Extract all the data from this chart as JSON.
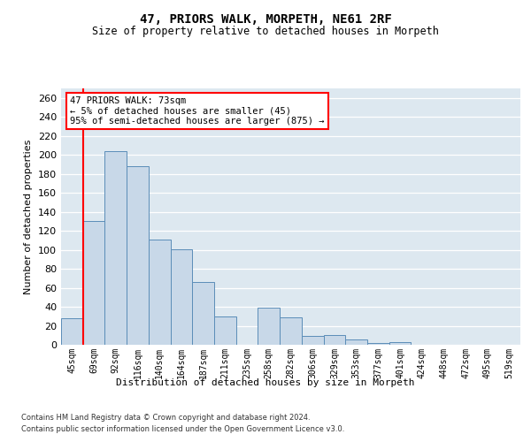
{
  "title": "47, PRIORS WALK, MORPETH, NE61 2RF",
  "subtitle": "Size of property relative to detached houses in Morpeth",
  "xlabel": "Distribution of detached houses by size in Morpeth",
  "ylabel": "Number of detached properties",
  "bar_labels": [
    "45sqm",
    "69sqm",
    "92sqm",
    "116sqm",
    "140sqm",
    "164sqm",
    "187sqm",
    "211sqm",
    "235sqm",
    "258sqm",
    "282sqm",
    "306sqm",
    "329sqm",
    "353sqm",
    "377sqm",
    "401sqm",
    "424sqm",
    "448sqm",
    "472sqm",
    "495sqm",
    "519sqm"
  ],
  "bar_values": [
    28,
    130,
    204,
    188,
    111,
    101,
    66,
    30,
    0,
    39,
    29,
    9,
    10,
    6,
    2,
    3,
    0,
    0,
    0,
    0,
    0
  ],
  "bar_color": "#c8d8e8",
  "bar_edge_color": "#5b8db8",
  "vline_x_idx": 1,
  "vline_color": "red",
  "annotation_line1": "47 PRIORS WALK: 73sqm",
  "annotation_line2": "← 5% of detached houses are smaller (45)",
  "annotation_line3": "95% of semi-detached houses are larger (875) →",
  "annotation_box_color": "white",
  "annotation_box_edge_color": "red",
  "ylim": [
    0,
    270
  ],
  "yticks": [
    0,
    20,
    40,
    60,
    80,
    100,
    120,
    140,
    160,
    180,
    200,
    220,
    240,
    260
  ],
  "bg_color": "#dde8f0",
  "footer_line1": "Contains HM Land Registry data © Crown copyright and database right 2024.",
  "footer_line2": "Contains public sector information licensed under the Open Government Licence v3.0."
}
